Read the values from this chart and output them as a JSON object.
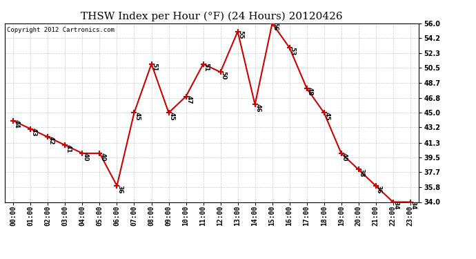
{
  "title": "THSW Index per Hour (°F) (24 Hours) 20120426",
  "copyright": "Copyright 2012 Cartronics.com",
  "hours": [
    "00:00",
    "01:00",
    "02:00",
    "03:00",
    "04:00",
    "05:00",
    "06:00",
    "07:00",
    "08:00",
    "09:00",
    "10:00",
    "11:00",
    "12:00",
    "13:00",
    "14:00",
    "15:00",
    "16:00",
    "17:00",
    "18:00",
    "19:00",
    "20:00",
    "21:00",
    "22:00",
    "23:00"
  ],
  "values": [
    44,
    43,
    42,
    41,
    40,
    40,
    36,
    45,
    51,
    45,
    47,
    51,
    50,
    55,
    46,
    56,
    53,
    48,
    45,
    40,
    38,
    36,
    34,
    34
  ],
  "ylim_min": 34.0,
  "ylim_max": 56.0,
  "yticks": [
    34.0,
    35.8,
    37.7,
    39.5,
    41.3,
    43.2,
    45.0,
    46.8,
    48.7,
    50.5,
    52.3,
    54.2,
    56.0
  ],
  "line_color": "#cc0000",
  "marker": "+",
  "marker_size": 6,
  "marker_color": "#cc0000",
  "bg_color": "#ffffff",
  "grid_color": "#bbbbbb",
  "title_fontsize": 11,
  "label_fontsize": 6.5,
  "tick_fontsize": 7,
  "copyright_fontsize": 6.5
}
